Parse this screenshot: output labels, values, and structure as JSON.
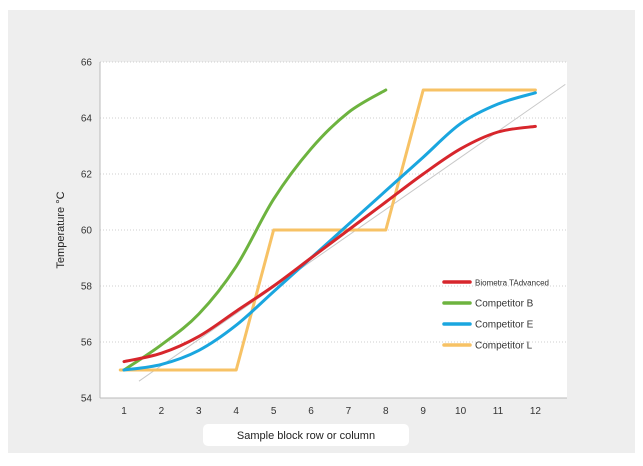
{
  "chart_data": {
    "type": "line",
    "title": "",
    "xlabel": "Sample block row or column",
    "ylabel": "Temperature °C",
    "xlim": [
      0.5,
      12.8
    ],
    "ylim": [
      54,
      66
    ],
    "x_ticks": [
      1,
      2,
      3,
      4,
      5,
      6,
      7,
      8,
      9,
      10,
      11,
      12
    ],
    "y_ticks": [
      54,
      56,
      58,
      60,
      62,
      64,
      66
    ],
    "grid": true,
    "legend_position": "right",
    "reference_line": {
      "x": [
        1.4,
        12.8
      ],
      "y": [
        54.6,
        65.2
      ],
      "color": "#c8c8c8"
    },
    "series": [
      {
        "name": "Biometra TAdvanced",
        "color": "#d7262c",
        "x": [
          1,
          2,
          3,
          4,
          5,
          6,
          7,
          8,
          9,
          10,
          11,
          12
        ],
        "y": [
          55.3,
          55.6,
          56.2,
          57.1,
          58.0,
          59.0,
          60.0,
          61.0,
          62.0,
          62.9,
          63.5,
          63.7
        ]
      },
      {
        "name": "Competitor B",
        "color": "#6db33f",
        "x": [
          1,
          2,
          3,
          4,
          5,
          6,
          7,
          8
        ],
        "y": [
          55.0,
          55.9,
          57.0,
          58.7,
          61.1,
          62.9,
          64.2,
          65.0
        ]
      },
      {
        "name": "Competitor E",
        "color": "#1aa6df",
        "x": [
          1,
          2,
          3,
          4,
          5,
          6,
          7,
          8,
          9,
          10,
          11,
          12
        ],
        "y": [
          55.0,
          55.2,
          55.7,
          56.6,
          57.8,
          59.0,
          60.2,
          61.4,
          62.6,
          63.8,
          64.5,
          64.9
        ]
      },
      {
        "name": "Competitor L",
        "color": "#f7c265",
        "x": [
          0.9,
          4.0,
          5.0,
          8.0,
          9.0,
          12.0
        ],
        "y": [
          55.0,
          55.0,
          60.0,
          60.0,
          65.0,
          65.0
        ]
      }
    ]
  }
}
